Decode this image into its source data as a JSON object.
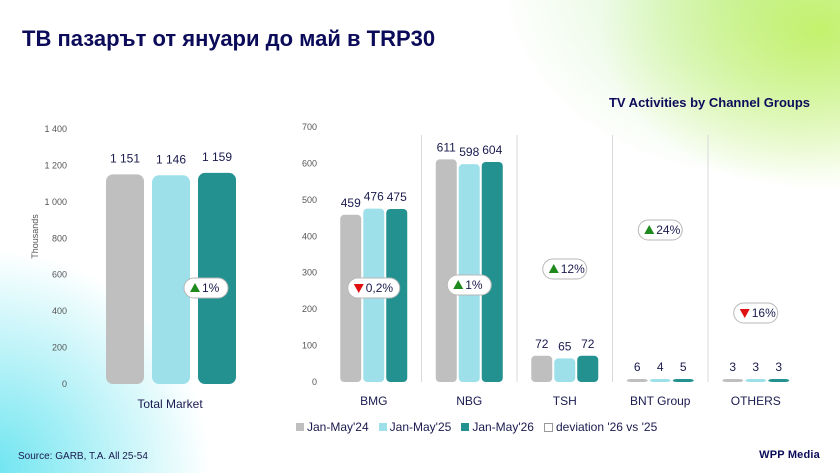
{
  "title": "ТВ пазарът от януари до май в TRP30",
  "subtitle": "TV Activities by Channel Groups",
  "source": "Source: GARB, T.A. All 25-54",
  "logo": "WPP Media",
  "legend": {
    "items": [
      {
        "label": "Jan-May'24",
        "color": "#bfbfbf"
      },
      {
        "label": "Jan-May'25",
        "color": "#9ee0ea"
      },
      {
        "label": "Jan-May'26",
        "color": "#23918f"
      },
      {
        "label": "deviation '26 vs '25",
        "color": "#ffffff"
      }
    ]
  },
  "chart_data": [
    {
      "type": "bar",
      "ylabel": "Thousands",
      "ylim": [
        0,
        1400
      ],
      "yticks": [
        "0",
        "200",
        "400",
        "600",
        "800",
        "1 000",
        "1 200",
        "1 400"
      ],
      "categories": [
        "Total Market"
      ],
      "series": [
        {
          "name": "Jan-May'24",
          "values": [
            1151
          ],
          "labels": [
            "1 151"
          ]
        },
        {
          "name": "Jan-May'25",
          "values": [
            1146
          ],
          "labels": [
            "1 146"
          ]
        },
        {
          "name": "Jan-May'26",
          "values": [
            1159
          ],
          "labels": [
            "1 159"
          ]
        }
      ],
      "deviations": [
        {
          "text": "1%",
          "direction": "up"
        }
      ]
    },
    {
      "type": "bar",
      "ylim": [
        0,
        700
      ],
      "yticks": [
        "0",
        "100",
        "200",
        "300",
        "400",
        "500",
        "600",
        "700"
      ],
      "categories": [
        "BMG",
        "NBG",
        "TSH",
        "BNT Group",
        "OTHERS"
      ],
      "series": [
        {
          "name": "Jan-May'24",
          "values": [
            459,
            611,
            72,
            6,
            3
          ]
        },
        {
          "name": "Jan-May'25",
          "values": [
            476,
            598,
            65,
            4,
            3
          ]
        },
        {
          "name": "Jan-May'26",
          "values": [
            475,
            604,
            72,
            5,
            3
          ]
        }
      ],
      "deviations": [
        {
          "text": "0,2%",
          "direction": "down"
        },
        {
          "text": "1%",
          "direction": "up"
        },
        {
          "text": "12%",
          "direction": "up"
        },
        {
          "text": "24%",
          "direction": "up"
        },
        {
          "text": "16%",
          "direction": "down"
        }
      ]
    }
  ]
}
